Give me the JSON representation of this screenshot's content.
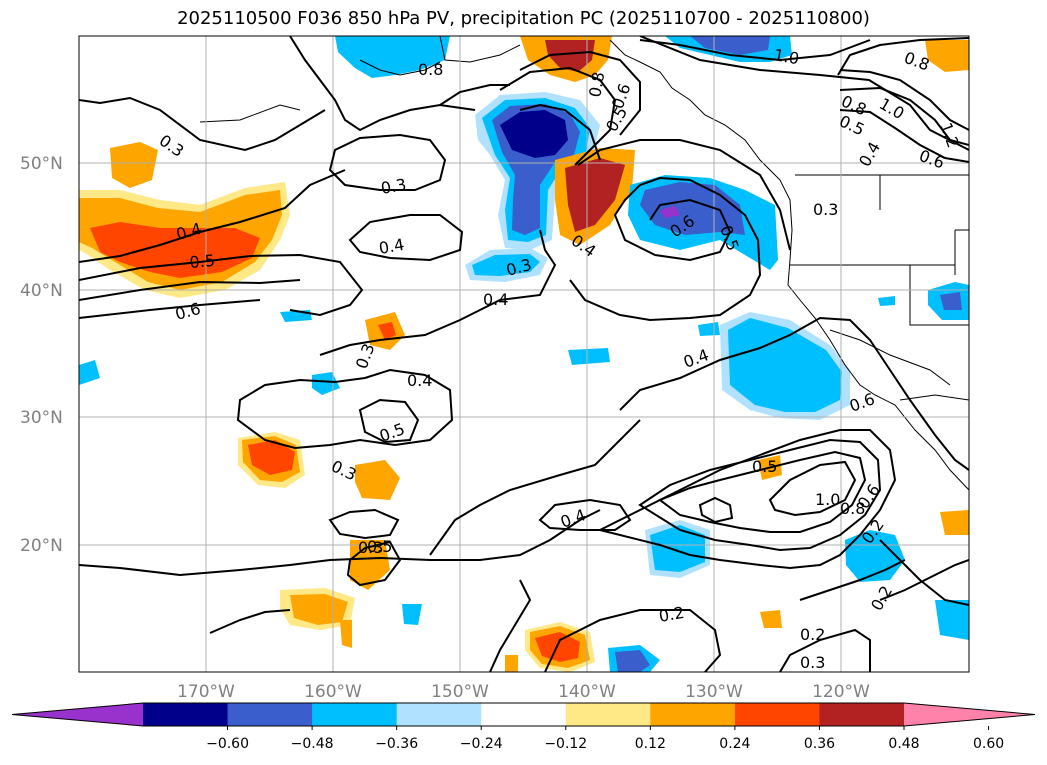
{
  "title": "2025110500 F036 850 hPa PV, precipitation PC (2025110700 - 2025110800)",
  "latitudes": [
    {
      "label": "50°N"
    },
    {
      "label": "40°N"
    },
    {
      "label": "30°N"
    },
    {
      "label": "20°N"
    }
  ],
  "longitudes": [
    {
      "label": "170°W"
    },
    {
      "label": "160°W"
    },
    {
      "label": "150°W"
    },
    {
      "label": "140°W"
    },
    {
      "label": "130°W"
    },
    {
      "label": "120°W"
    }
  ],
  "colorbar": {
    "bins": [
      "#9932CC",
      "#00008B",
      "#3A5FCD",
      "#00BFFF",
      "#B0E2FF",
      "#FFFFFF",
      "#FFE886",
      "#FFA500",
      "#FF4500",
      "#B22222",
      "#FF82AB"
    ],
    "ticks": [
      "−0.60",
      "−0.48",
      "−0.36",
      "−0.24",
      "−0.12",
      "0.12",
      "0.24",
      "0.36",
      "0.48",
      "0.60"
    ]
  },
  "contour_labels": {
    "a": "0.3",
    "b": "0.3",
    "c": "0.4",
    "d": "0.5",
    "e": "0.6",
    "f": "0.4",
    "g": "0.3",
    "h": "0.4",
    "i": "0.3",
    "j": "0.4",
    "k": "0.5",
    "l": "0.3",
    "m": "0.3",
    "n": "0.4",
    "o": "0.6",
    "p": "0.5",
    "q": "0.4",
    "r": "0.5",
    "s": "1.0",
    "t": "0.8",
    "u": "0.6",
    "v": "0.2",
    "w": "0.2",
    "x": "0.2",
    "y": "0.2",
    "z": "0.3",
    "aa": "1.0",
    "ab": "0.8",
    "ac": "1.0",
    "ad": "0.8",
    "ae": "0.5",
    "af": "0.4",
    "ag": "1.2",
    "ah": "0.6",
    "ai": "0.8",
    "aj": "0.6",
    "ak": "0.5",
    "al": "0.3",
    "am": "0.4",
    "an": "0.5",
    "ao": "0.6",
    "ap": "0.8"
  }
}
